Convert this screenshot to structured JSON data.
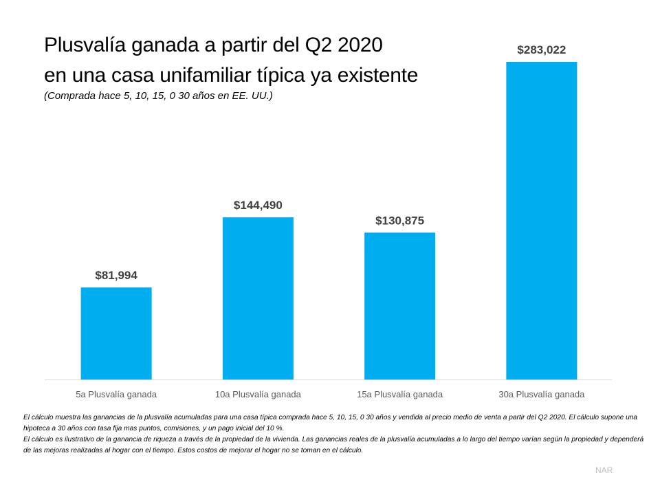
{
  "header": {
    "title_line1": "Plusvalía ganada a partir del Q2 2020",
    "title_line2": "en una casa unifamiliar típica ya existente",
    "subtitle": "(Comprada hace 5, 10, 15, 0 30 años en EE. UU.)"
  },
  "chart_data": {
    "type": "bar",
    "categories": [
      "5a Plusvalía ganada",
      "10a Plusvalía ganada",
      "15a Plusvalía ganada",
      "30a Plusvalía ganada"
    ],
    "values": [
      81994,
      144490,
      130875,
      283022
    ],
    "data_labels": [
      "$81,994",
      "$144,490",
      "$130,875",
      "$283,022"
    ],
    "ylim": [
      0,
      283022
    ],
    "grid": false,
    "bar_color": "#00AEEF"
  },
  "footnotes": [
    "El cálculo muestra  las ganancias de la plusvalía acumuladas para una casa típica comprada hace 5, 10, 15, 0 30 años y vendida al precio medio de venta a partir  del Q2 2020. El cálculo supone una hipoteca a 30 años con tasa fija mas puntos, comisiones,  y un pago inicial del 10 %.",
    "El cálculo es ilustrativo  de la ganancia de riqueza  a través de la propiedad de la vivienda. Las ganancias reales  de la plusvalía acumuladas a lo largo del tiempo varían según la propiedad y dependerá de las mejoras  realizadas al hogar con el tiempo.  Estos costos de mejorar  el hogar no se toman  en el cálculo."
  ],
  "source": "NAR"
}
